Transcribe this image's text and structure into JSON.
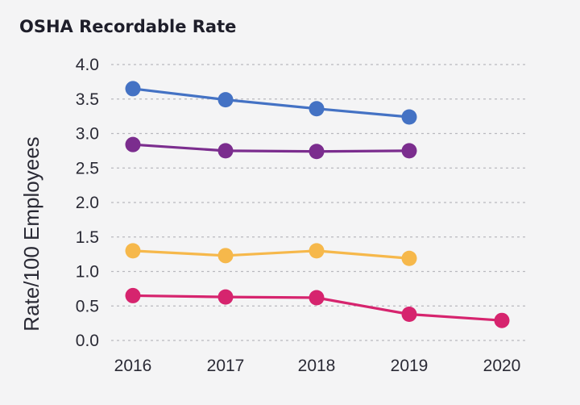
{
  "chart_data": {
    "type": "line",
    "title": "OSHA Recordable Rate",
    "xlabel": "",
    "ylabel": "Rate/100 Employees",
    "x": [
      "2016",
      "2017",
      "2018",
      "2019",
      "2020"
    ],
    "ylim": [
      0,
      4.0
    ],
    "yticks": [
      "0.0",
      "0.5",
      "1.0",
      "1.5",
      "2.0",
      "2.5",
      "3.0",
      "3.5",
      "4.0"
    ],
    "grid": true,
    "legend": "none",
    "series": [
      {
        "color": "#4472c4",
        "values": [
          3.65,
          3.49,
          3.36,
          3.24,
          null
        ]
      },
      {
        "color": "#7b2d8e",
        "values": [
          2.84,
          2.75,
          2.74,
          2.75,
          null
        ]
      },
      {
        "color": "#f6b84b",
        "values": [
          1.3,
          1.23,
          1.3,
          1.19,
          null
        ]
      },
      {
        "color": "#d6246e",
        "values": [
          0.65,
          0.63,
          0.62,
          0.38,
          0.29
        ]
      }
    ]
  }
}
